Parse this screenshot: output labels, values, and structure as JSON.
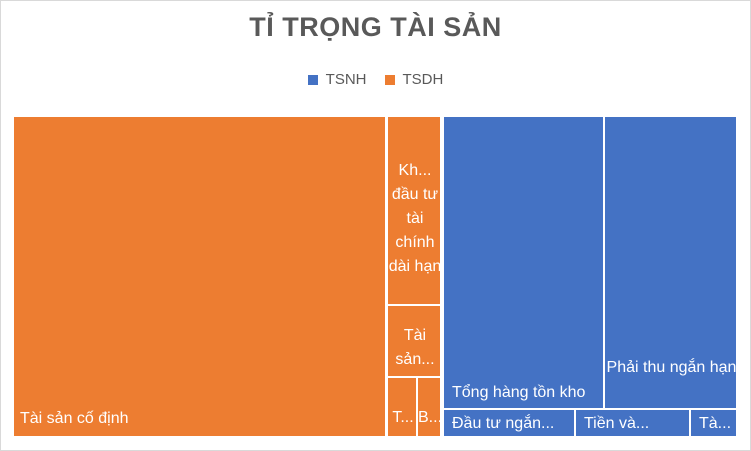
{
  "chart_data": {
    "type": "treemap",
    "title": "TỈ TRỌNG TÀI SẢN",
    "legend_position": "top",
    "series": [
      {
        "name": "TSNH",
        "color": "#4472C4"
      },
      {
        "name": "TSDH",
        "color": "#ED7D31"
      }
    ],
    "items": [
      {
        "label": "Tài sản cố định",
        "group": "TSDH",
        "relative_size": 0.5
      },
      {
        "label": "Kh... đầu tư tài chính dài hạn",
        "group": "TSDH",
        "relative_size": 0.065
      },
      {
        "label": "Tài sản...",
        "group": "TSDH",
        "relative_size": 0.026
      },
      {
        "label": "T...",
        "group": "TSDH",
        "relative_size": 0.008
      },
      {
        "label": "B...",
        "group": "TSDH",
        "relative_size": 0.007
      },
      {
        "label": "Tổng hàng tồn kho",
        "group": "TSNH",
        "relative_size": 0.19
      },
      {
        "label": "Phải thu ngắn hạn",
        "group": "TSNH",
        "relative_size": 0.164
      },
      {
        "label": "Đầu tư ngắn...",
        "group": "TSNH",
        "relative_size": 0.018
      },
      {
        "label": "Tiền và...",
        "group": "TSNH",
        "relative_size": 0.015
      },
      {
        "label": "Tà...",
        "group": "TSNH",
        "relative_size": 0.007
      }
    ]
  }
}
